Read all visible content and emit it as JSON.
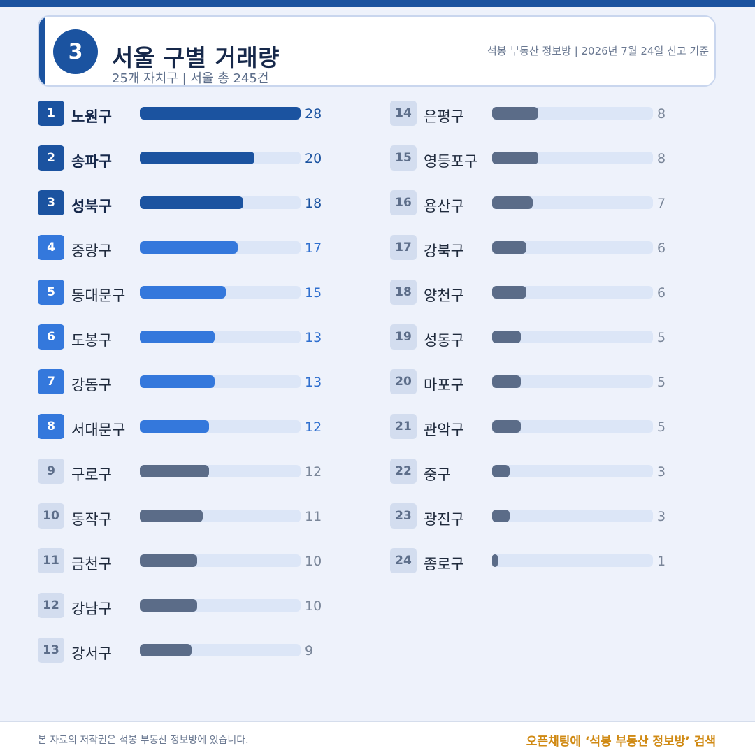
{
  "header": {
    "badge": "3",
    "title": "서울 구별 거래량",
    "subtitle": "25개 자치구 | 서울 총 245건",
    "source": "석봉 부동산 정보방 | 2026년 7월 24일 신고 기준"
  },
  "chart_data": {
    "type": "bar",
    "orientation": "horizontal",
    "xlim": [
      0,
      28
    ],
    "grid": false,
    "categories": [
      "노원구",
      "송파구",
      "성북구",
      "중랑구",
      "동대문구",
      "도봉구",
      "강동구",
      "서대문구",
      "구로구",
      "동작구",
      "금천구",
      "강남구",
      "강서구",
      "은평구",
      "영등포구",
      "용산구",
      "강북구",
      "양천구",
      "성동구",
      "마포구",
      "관악구",
      "중구",
      "광진구",
      "종로구"
    ],
    "ranks": [
      "1",
      "2",
      "3",
      "4",
      "5",
      "6",
      "7",
      "8",
      "9",
      "10",
      "11",
      "12",
      "13",
      "14",
      "15",
      "16",
      "17",
      "18",
      "19",
      "20",
      "21",
      "22",
      "23",
      "24"
    ],
    "values": [
      28,
      20,
      18,
      17,
      15,
      13,
      13,
      12,
      12,
      11,
      10,
      10,
      9,
      8,
      8,
      7,
      6,
      6,
      5,
      5,
      5,
      3,
      3,
      1
    ]
  },
  "colors": {
    "top3": "#1b53a0",
    "top4_8": "#3478dc",
    "rest": "#5b6c88",
    "track": "#dce6f7",
    "cta": "#d08a14"
  },
  "footer": {
    "copyright": "본 자료의 저작권은 석봉 부동산 정보방에 있습니다.",
    "cta": "오픈채팅에 ‘석봉 부동산 정보방’ 검색"
  }
}
